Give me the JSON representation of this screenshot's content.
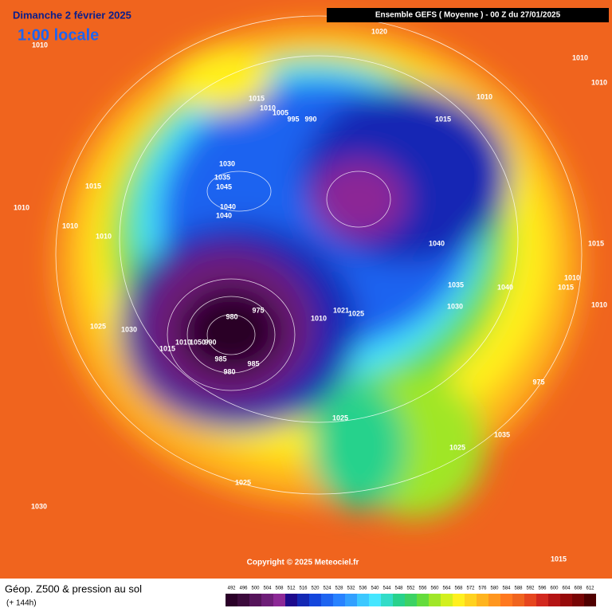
{
  "header": {
    "date": "Dimanche 2 février 2025",
    "local_time": "1:00 locale",
    "model": "Ensemble GEFS  ( Moyenne )  -  00 Z du 27/01/2025"
  },
  "isobar_labels": [
    "1020",
    "1010",
    "1010",
    "1010",
    "1015",
    "1010",
    "1005",
    "995",
    "990",
    "1010",
    "1015",
    "1030",
    "1035",
    "1045",
    "1040",
    "1040",
    "1015",
    "1010",
    "1010",
    "1010",
    "1040",
    "1015",
    "1010",
    "1015",
    "1035",
    "1040",
    "1030",
    "1010",
    "1025",
    "1030",
    "980",
    "975",
    "1021",
    "1025",
    "1015",
    "1010",
    "1050",
    "990",
    "985",
    "985",
    "980",
    "975",
    "1025",
    "1035",
    "1025",
    "1025",
    "1030",
    "1015",
    "1010"
  ],
  "copyright": "Copyright © 2025 Meteociel.fr",
  "footer": {
    "title": "Géop. Z500 & pression au sol",
    "subtitle": "(+ 144h)"
  },
  "scale": {
    "values": [
      492,
      496,
      500,
      504,
      508,
      512,
      516,
      520,
      524,
      528,
      532,
      536,
      540,
      544,
      548,
      552,
      556,
      560,
      564,
      568,
      572,
      576,
      580,
      584,
      588,
      592,
      596,
      600,
      604,
      608,
      612
    ],
    "colors": [
      "#2a0028",
      "#3c0a3c",
      "#55145a",
      "#6e1e78",
      "#8c2896",
      "#1e0a8c",
      "#1428b4",
      "#1446dc",
      "#1e64f0",
      "#2882ff",
      "#32a0ff",
      "#3cc8ff",
      "#46e6ff",
      "#32dcc8",
      "#28d28c",
      "#3cd264",
      "#64dc3c",
      "#a0e628",
      "#d2f01e",
      "#fff01e",
      "#ffd21e",
      "#ffb41e",
      "#ff961e",
      "#ff781e",
      "#f0641e",
      "#e6461e",
      "#d2281e",
      "#b41414",
      "#960a0a",
      "#780505",
      "#500000"
    ]
  }
}
